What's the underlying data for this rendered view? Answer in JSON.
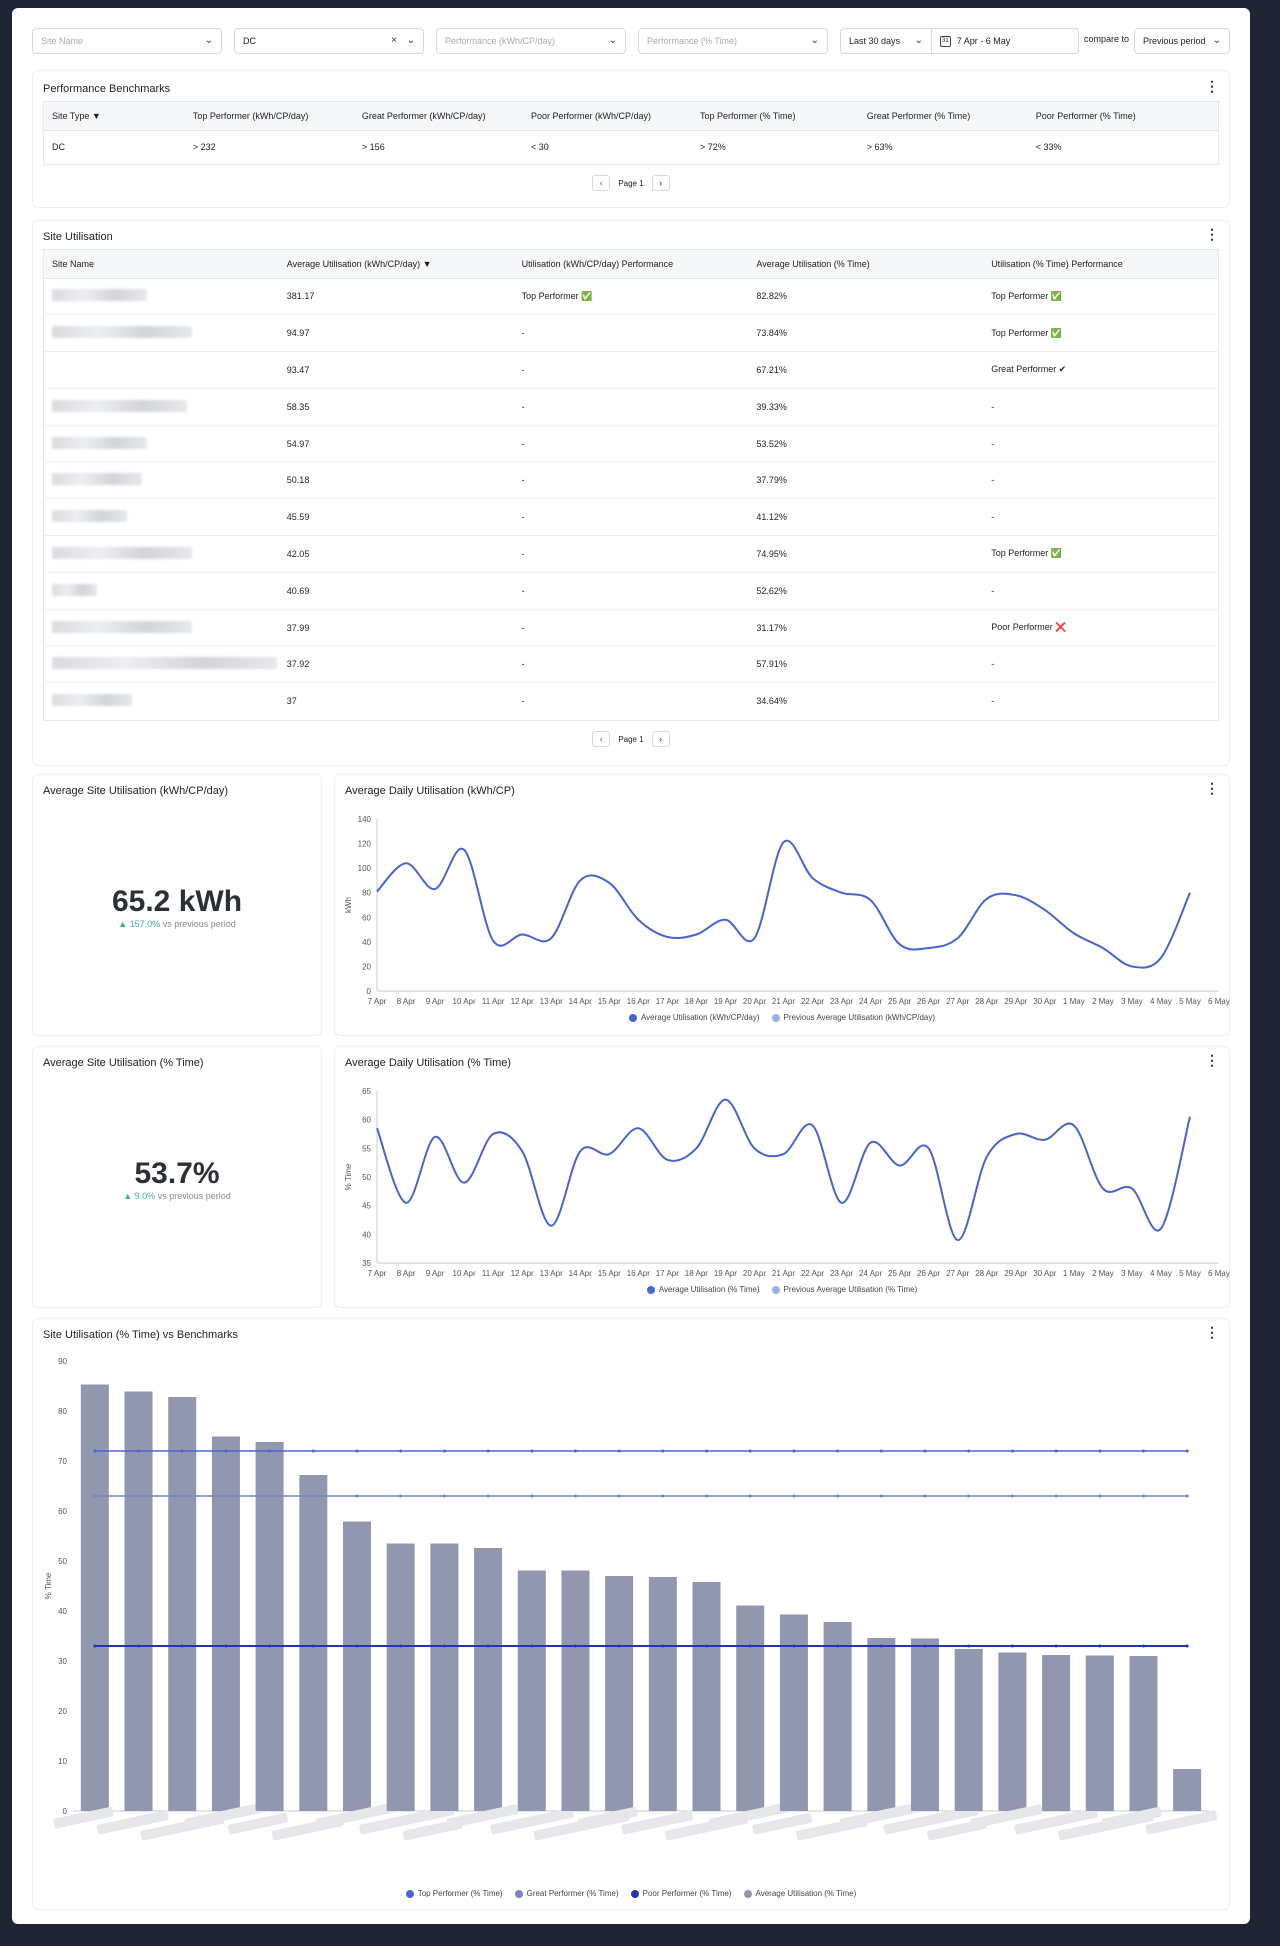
{
  "filters": {
    "site_name_placeholder": "Site Name",
    "site_type_value": "DC",
    "perf_kwh_placeholder": "Performance (kWh/CP/day)",
    "perf_time_placeholder": "Performance (% Time)",
    "range_value": "Last 30 days",
    "date_range": "7 Apr - 6 May",
    "compare_label": "compare to",
    "compare_value": "Previous period",
    "calendar_day": "31"
  },
  "benchmarks": {
    "title": "Performance Benchmarks",
    "headers": [
      "Site Type",
      "Top Performer (kWh/CP/day)",
      "Great Performer (kWh/CP/day)",
      "Poor Performer (kWh/CP/day)",
      "Top Performer (% Time)",
      "Great Performer (% Time)",
      "Poor Performer (% Time)"
    ],
    "rows": [
      [
        "DC",
        "> 232",
        "> 156",
        "< 30",
        "> 72%",
        "> 63%",
        "< 33%"
      ]
    ],
    "page_label": "Page 1"
  },
  "utilisation": {
    "title": "Site Utilisation",
    "headers": [
      "Site Name",
      "Average Utilisation (kWh/CP/day)",
      "Utilisation (kWh/CP/day) Performance",
      "Average Utilisation (% Time)",
      "Utilisation (% Time) Performance"
    ],
    "rows": [
      [
        "",
        "381.17",
        "Top Performer ✅",
        "82.82%",
        "Top Performer ✅"
      ],
      [
        "",
        "94.97",
        "-",
        "73.84%",
        "Top Performer ✅"
      ],
      [
        "",
        "93.47",
        "-",
        "67.21%",
        "Great Performer ✔"
      ],
      [
        "",
        "58.35",
        "-",
        "39.33%",
        "-"
      ],
      [
        "",
        "54.97",
        "-",
        "53.52%",
        "-"
      ],
      [
        "",
        "50.18",
        "-",
        "37.79%",
        "-"
      ],
      [
        "",
        "45.59",
        "-",
        "41.12%",
        "-"
      ],
      [
        "",
        "42.05",
        "-",
        "74.95%",
        "Top Performer ✅"
      ],
      [
        "",
        "40.69",
        "-",
        "52.62%",
        "-"
      ],
      [
        "",
        "37.99",
        "-",
        "31.17%",
        "Poor Performer ❌"
      ],
      [
        "",
        "37.92",
        "-",
        "57.91%",
        "-"
      ],
      [
        "",
        "37",
        "-",
        "34.64%",
        "-"
      ]
    ],
    "page_label": "Page 1"
  },
  "kpi_kwh": {
    "title": "Average Site Utilisation (kWh/CP/day)",
    "value": "65.2 kWh",
    "delta": "▲ 157.0%",
    "delta_suffix": " vs previous period"
  },
  "kpi_time": {
    "title": "Average Site Utilisation (% Time)",
    "value": "53.7%",
    "delta": "▲ 9.0%",
    "delta_suffix": " vs previous period"
  },
  "colors": {
    "line": "#4a63d0",
    "prev": "#9bb0e6",
    "bar": "#9297b0",
    "top": "#4a63d0",
    "great": "#7884c4",
    "poor": "#2335b5",
    "avg": "#9297b0"
  },
  "chart_data": [
    {
      "type": "line",
      "title": "Average Daily Utilisation (kWh/CP)",
      "ylabel": "kWh",
      "ylim": [
        0,
        140
      ],
      "yticks": [
        0,
        20,
        40,
        60,
        80,
        100,
        120,
        140
      ],
      "x": [
        "7 Apr",
        "8 Apr",
        "9 Apr",
        "10 Apr",
        "11 Apr",
        "12 Apr",
        "13 Apr",
        "14 Apr",
        "15 Apr",
        "16 Apr",
        "17 Apr",
        "18 Apr",
        "19 Apr",
        "20 Apr",
        "21 Apr",
        "22 Apr",
        "23 Apr",
        "24 Apr",
        "25 Apr",
        "26 Apr",
        "27 Apr",
        "28 Apr",
        "29 Apr",
        "30 Apr",
        "1 May",
        "2 May",
        "3 May",
        "4 May",
        "5 May",
        "6 May"
      ],
      "series": [
        {
          "name": "Average Utilisation (kWh/CP/day)",
          "values": [
            81,
            104,
            83,
            115,
            41,
            46,
            43,
            90,
            88,
            58,
            44,
            46,
            58,
            43,
            121,
            92,
            80,
            74,
            38,
            35,
            43,
            75,
            78,
            66,
            47,
            35,
            20,
            27,
            80,
            null
          ]
        }
      ],
      "legend": [
        "Average Utilisation (kWh/CP/day)",
        "Previous Average Utilisation (kWh/CP/day)"
      ]
    },
    {
      "type": "line",
      "title": "Average Daily Utilisation (% Time)",
      "ylabel": "% Time",
      "ylim": [
        35,
        65
      ],
      "yticks": [
        35,
        40,
        45,
        50,
        55,
        60,
        65
      ],
      "x": [
        "7 Apr",
        "8 Apr",
        "9 Apr",
        "10 Apr",
        "11 Apr",
        "12 Apr",
        "13 Apr",
        "14 Apr",
        "15 Apr",
        "16 Apr",
        "17 Apr",
        "18 Apr",
        "19 Apr",
        "20 Apr",
        "21 Apr",
        "22 Apr",
        "23 Apr",
        "24 Apr",
        "25 Apr",
        "26 Apr",
        "27 Apr",
        "28 Apr",
        "29 Apr",
        "30 Apr",
        "1 May",
        "2 May",
        "3 May",
        "4 May",
        "5 May",
        "6 May"
      ],
      "series": [
        {
          "name": "Average Utilisation (% Time)",
          "values": [
            58.5,
            45.5,
            57,
            49,
            57.5,
            54.5,
            41.5,
            54.5,
            54,
            58.5,
            53,
            55,
            63.5,
            55,
            54,
            59,
            45.5,
            56,
            52,
            55,
            39,
            53.5,
            57.5,
            56.5,
            59,
            48,
            48,
            41,
            60.5,
            null
          ]
        }
      ],
      "legend": [
        "Average Utilisation (% Time)",
        "Previous Average Utilisation (% Time)"
      ]
    },
    {
      "type": "bar",
      "title": "Site Utilisation (% Time) vs Benchmarks",
      "ylabel": "% Time",
      "ylim": [
        0,
        90
      ],
      "yticks": [
        0,
        10,
        20,
        30,
        40,
        50,
        60,
        70,
        80,
        90
      ],
      "values": [
        85.3,
        83.9,
        82.8,
        74.9,
        73.8,
        67.2,
        57.9,
        53.5,
        53.5,
        52.6,
        48.1,
        48.1,
        47.0,
        46.8,
        45.8,
        41.1,
        39.3,
        37.8,
        34.6,
        34.5,
        32.4,
        31.7,
        31.2,
        31.1,
        31.0,
        8.4
      ],
      "benchmarks": [
        {
          "name": "Top Performer (% Time)",
          "value": 72
        },
        {
          "name": "Great Performer (% Time)",
          "value": 63
        },
        {
          "name": "Poor Performer (% Time)",
          "value": 33
        }
      ],
      "legend": [
        "Top Performer (% Time)",
        "Great Performer (% Time)",
        "Poor Performer (% Time)",
        "Average Utilisation (% Time)"
      ]
    }
  ]
}
